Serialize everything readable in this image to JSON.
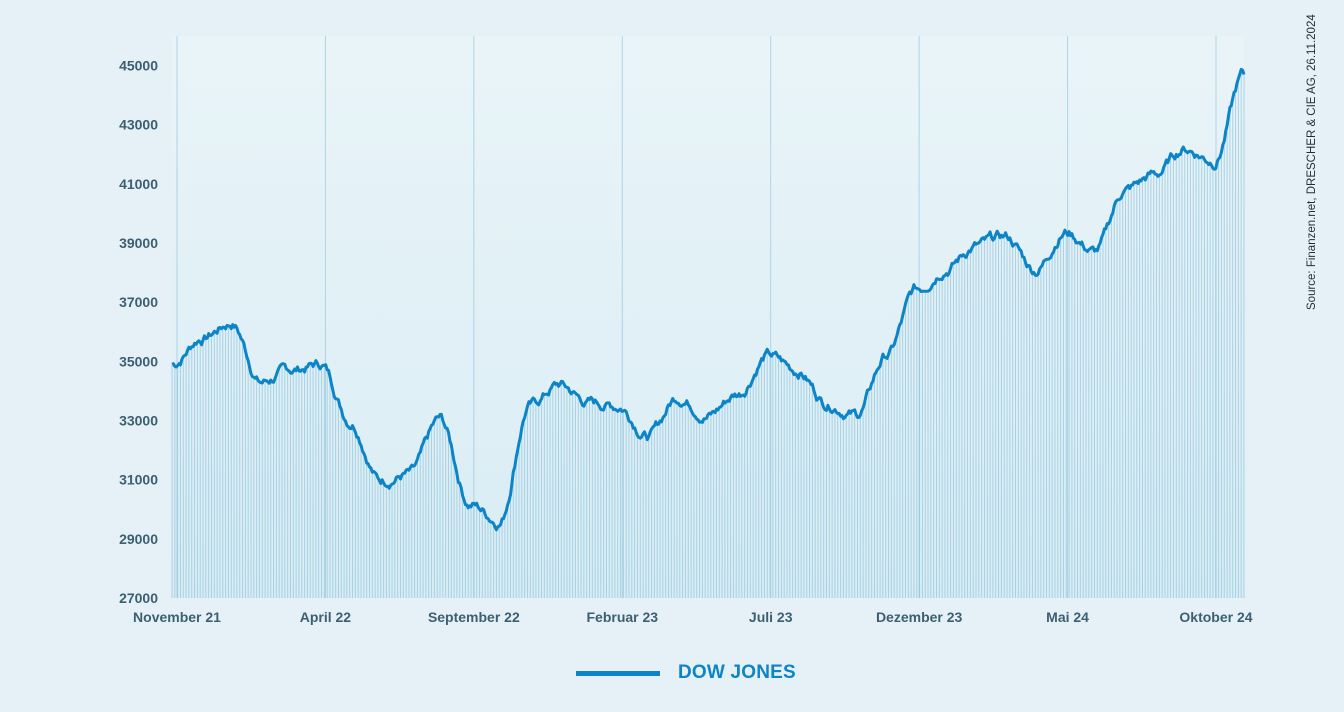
{
  "source": "Source: Finanzen.net, DRESCHER & CIE AG, 26.11.2024",
  "legend": {
    "label": "DOW JONES",
    "color": "#0b84c8"
  },
  "colors": {
    "background": "#e5f1f6",
    "line": "#0b84c8",
    "fill": "#9fcbe0",
    "grid": "#7fbcd8"
  },
  "chart_data": {
    "type": "area",
    "title": "",
    "xlabel": "",
    "ylabel": "",
    "ylim": [
      27000,
      46000
    ],
    "y_ticks": [
      27000,
      29000,
      31000,
      33000,
      35000,
      37000,
      39000,
      41000,
      43000,
      45000
    ],
    "x_tick_labels": [
      "November 21",
      "April 22",
      "September 22",
      "Februar 23",
      "Juli 23",
      "Dezember 23",
      "Mai 24",
      "Oktober 24"
    ],
    "grid": "vertical",
    "legend_position": "bottom-center",
    "series": [
      {
        "name": "DOW JONES",
        "x": [
          "2021-11",
          "2021-12",
          "2022-01",
          "2022-02",
          "2022-03",
          "2022-04",
          "2022-05",
          "2022-06",
          "2022-07",
          "2022-08",
          "2022-09",
          "2022-10",
          "2022-11",
          "2022-12",
          "2023-01",
          "2023-02",
          "2023-03",
          "2023-04",
          "2023-05",
          "2023-06",
          "2023-07",
          "2023-08",
          "2023-09",
          "2023-10",
          "2023-11",
          "2023-12",
          "2024-01",
          "2024-02",
          "2024-03",
          "2024-04",
          "2024-05",
          "2024-06",
          "2024-07",
          "2024-08",
          "2024-09",
          "2024-10",
          "2024-11"
        ],
        "values": [
          34900,
          35800,
          36300,
          34300,
          34700,
          34900,
          33000,
          31000,
          31200,
          33000,
          30200,
          29600,
          33500,
          34200,
          33600,
          33500,
          32500,
          33800,
          33200,
          33900,
          35200,
          34700,
          33600,
          33200,
          35200,
          37400,
          38200,
          38900,
          39200,
          38100,
          39400,
          38700,
          40800,
          41300,
          42200,
          41800,
          44700
        ]
      }
    ]
  }
}
